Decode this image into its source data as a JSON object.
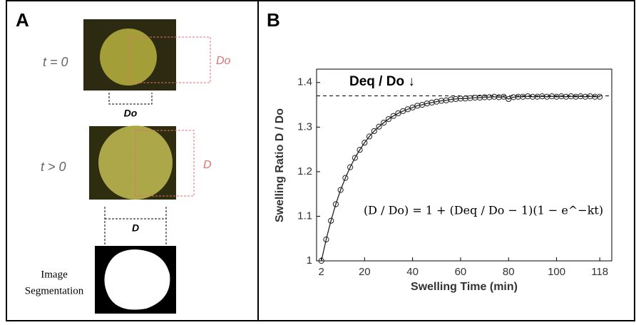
{
  "panel_a": {
    "label": "A",
    "t0_label": "t = 0",
    "t0_red": "Do",
    "t0_black": "Do",
    "t1_label": "t > 0",
    "t1_red": "D",
    "t1_black": "D",
    "segmentation": [
      "Image",
      "Segmentation"
    ]
  },
  "chart_data": {
    "type": "scatter",
    "panel_label": "B",
    "xlabel": "Swelling Time (min)",
    "ylabel": "Swelling Ratio D / Do",
    "annotation": "Deq / Do ↓",
    "equation": "(D / Do) = 1 + (Deq / Do − 1)(1 − e^−kt)",
    "reference_line": 1.37,
    "xlim": [
      0,
      123
    ],
    "ylim": [
      1,
      1.43
    ],
    "xticks": [
      2,
      20,
      40,
      60,
      80,
      100,
      118
    ],
    "yticks": [
      1,
      1.1,
      1.2,
      1.3,
      1.4
    ],
    "series": [
      {
        "color": "#222222",
        "x": [
          2,
          4,
          6,
          8,
          10,
          12,
          14,
          16,
          18,
          20,
          22,
          24,
          26,
          28,
          30,
          32,
          34,
          36,
          38,
          40,
          42,
          44,
          46,
          48,
          50,
          52,
          54,
          56,
          58,
          60,
          62,
          64,
          66,
          68,
          70,
          72,
          74,
          76,
          78,
          80,
          82,
          84,
          86,
          88,
          90,
          92,
          94,
          96,
          98,
          100,
          102,
          104,
          106,
          108,
          110,
          112,
          114,
          116,
          118
        ],
        "values": [
          1.0,
          1.048,
          1.09,
          1.127,
          1.159,
          1.186,
          1.21,
          1.231,
          1.249,
          1.265,
          1.279,
          1.291,
          1.301,
          1.31,
          1.318,
          1.325,
          1.331,
          1.336,
          1.34,
          1.344,
          1.348,
          1.35,
          1.353,
          1.355,
          1.357,
          1.359,
          1.36,
          1.362,
          1.363,
          1.364,
          1.364,
          1.365,
          1.366,
          1.366,
          1.367,
          1.367,
          1.368,
          1.367,
          1.368,
          1.363,
          1.367,
          1.368,
          1.368,
          1.369,
          1.368,
          1.368,
          1.369,
          1.368,
          1.369,
          1.368,
          1.369,
          1.368,
          1.369,
          1.368,
          1.369,
          1.368,
          1.369,
          1.368,
          1.368
        ]
      }
    ]
  }
}
